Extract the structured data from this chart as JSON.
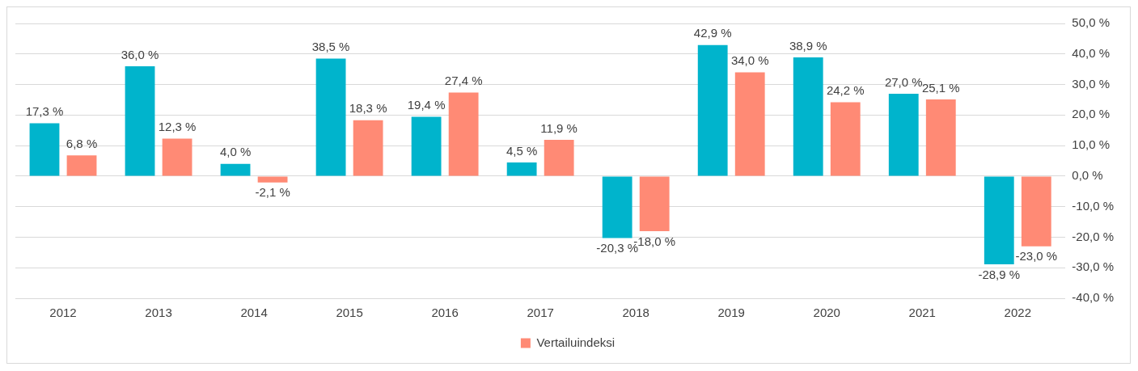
{
  "chart_data": {
    "type": "bar",
    "categories": [
      "2012",
      "2013",
      "2014",
      "2015",
      "2016",
      "2017",
      "2018",
      "2019",
      "2020",
      "2021",
      "2022"
    ],
    "series": [
      {
        "color": "#00b4cc",
        "values": [
          17.3,
          36.0,
          4.0,
          38.5,
          19.4,
          4.5,
          -20.3,
          42.9,
          38.9,
          27.0,
          -28.9
        ],
        "value_labels": [
          "17,3 %",
          "36,0 %",
          "4,0 %",
          "38,5 %",
          "19,4 %",
          "4,5 %",
          "-20,3 %",
          "42,9 %",
          "38,9 %",
          "27,0 %",
          "-28,9 %"
        ]
      },
      {
        "name": "Vertailuindeksi",
        "color": "#ff8a75",
        "values": [
          6.8,
          12.3,
          -2.1,
          18.3,
          27.4,
          11.9,
          -18.0,
          34.0,
          24.2,
          25.1,
          -23.0
        ],
        "value_labels": [
          "6,8 %",
          "12,3 %",
          "-2,1 %",
          "18,3 %",
          "27,4 %",
          "11,9 %",
          "-18,0 %",
          "34,0 %",
          "24,2 %",
          "25,1 %",
          "-23,0 %"
        ]
      }
    ],
    "ylim": [
      -40,
      50
    ],
    "yticks": [
      {
        "value": -40,
        "label": "-40,0 %"
      },
      {
        "value": -30,
        "label": "-30,0 %"
      },
      {
        "value": -20,
        "label": "-20,0 %"
      },
      {
        "value": -10,
        "label": "-10,0 %"
      },
      {
        "value": 0,
        "label": "0,0 %"
      },
      {
        "value": 10,
        "label": "10,0 %"
      },
      {
        "value": 20,
        "label": "20,0 %"
      },
      {
        "value": 30,
        "label": "30,0 %"
      },
      {
        "value": 40,
        "label": "40,0 %"
      },
      {
        "value": 50,
        "label": "50,0 %"
      }
    ],
    "grid": "y",
    "legend": "bottom"
  }
}
